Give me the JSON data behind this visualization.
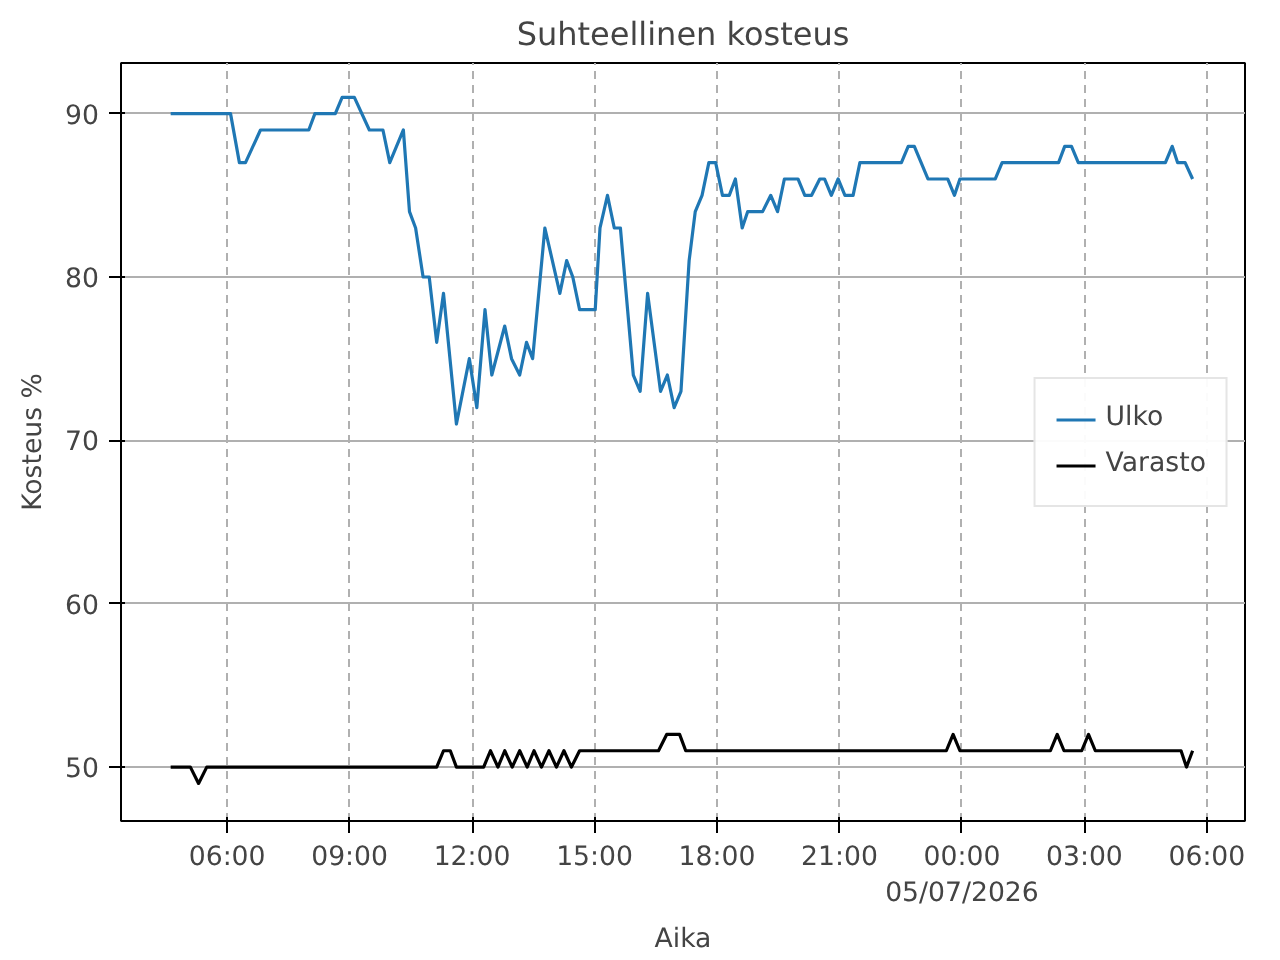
{
  "chart_data": {
    "type": "line",
    "title": "Suhteellinen kosteus",
    "xlabel": "Aika",
    "ylabel": "Kosteus %",
    "xlim": [
      "2026-07-04T03:24",
      "2026-07-05T06:56"
    ],
    "ylim": [
      46.7,
      93.1
    ],
    "xticks": [
      {
        "value": "2026-07-04T06:00",
        "label": "06:00"
      },
      {
        "value": "2026-07-04T09:00",
        "label": "09:00"
      },
      {
        "value": "2026-07-04T12:00",
        "label": "12:00"
      },
      {
        "value": "2026-07-04T15:00",
        "label": "15:00"
      },
      {
        "value": "2026-07-04T18:00",
        "label": "18:00"
      },
      {
        "value": "2026-07-04T21:00",
        "label": "21:00"
      },
      {
        "value": "2026-07-05T00:00",
        "label": "00:00\n05/07/2026"
      },
      {
        "value": "2026-07-05T03:00",
        "label": "03:00"
      },
      {
        "value": "2026-07-05T06:00",
        "label": "06:00"
      }
    ],
    "yticks": [
      50,
      60,
      70,
      80,
      90
    ],
    "grid": true,
    "legend": "right",
    "line_style": "solid",
    "series": [
      {
        "name": "Ulko",
        "color": "#1f77b4",
        "x": [
          "2026-07-04T04:37",
          "2026-07-04T06:05",
          "2026-07-04T06:18",
          "2026-07-04T06:27",
          "2026-07-04T06:49",
          "2026-07-04T08:00",
          "2026-07-04T08:09",
          "2026-07-04T08:39",
          "2026-07-04T08:49",
          "2026-07-04T09:07",
          "2026-07-04T09:29",
          "2026-07-04T09:49",
          "2026-07-04T09:59",
          "2026-07-04T10:19",
          "2026-07-04T10:28",
          "2026-07-04T10:37",
          "2026-07-04T10:48",
          "2026-07-04T10:57",
          "2026-07-04T11:08",
          "2026-07-04T11:18",
          "2026-07-04T11:37",
          "2026-07-04T11:56",
          "2026-07-04T12:07",
          "2026-07-04T12:19",
          "2026-07-04T12:29",
          "2026-07-04T12:48",
          "2026-07-04T12:58",
          "2026-07-04T13:10",
          "2026-07-04T13:20",
          "2026-07-04T13:29",
          "2026-07-04T13:47",
          "2026-07-04T14:09",
          "2026-07-04T14:19",
          "2026-07-04T14:28",
          "2026-07-04T14:38",
          "2026-07-04T15:01",
          "2026-07-04T15:08",
          "2026-07-04T15:19",
          "2026-07-04T15:29",
          "2026-07-04T15:38",
          "2026-07-04T15:57",
          "2026-07-04T16:07",
          "2026-07-04T16:18",
          "2026-07-04T16:37",
          "2026-07-04T16:47",
          "2026-07-04T16:57",
          "2026-07-04T17:07",
          "2026-07-04T17:19",
          "2026-07-04T17:28",
          "2026-07-04T17:38",
          "2026-07-04T17:48",
          "2026-07-04T17:58",
          "2026-07-04T18:08",
          "2026-07-04T18:18",
          "2026-07-04T18:27",
          "2026-07-04T18:37",
          "2026-07-04T18:45",
          "2026-07-04T19:07",
          "2026-07-04T19:19",
          "2026-07-04T19:29",
          "2026-07-04T19:39",
          "2026-07-04T19:59",
          "2026-07-04T20:09",
          "2026-07-04T20:19",
          "2026-07-04T20:31",
          "2026-07-04T20:38",
          "2026-07-04T20:48",
          "2026-07-04T20:58",
          "2026-07-04T21:08",
          "2026-07-04T21:20",
          "2026-07-04T21:30",
          "2026-07-04T22:31",
          "2026-07-04T22:41",
          "2026-07-04T22:50",
          "2026-07-04T23:10",
          "2026-07-04T23:39",
          "2026-07-04T23:49",
          "2026-07-04T23:57",
          "2026-07-05T00:49",
          "2026-07-05T00:59",
          "2026-07-05T02:22",
          "2026-07-05T02:31",
          "2026-07-05T02:41",
          "2026-07-05T02:51",
          "2026-07-05T04:59",
          "2026-07-05T05:09",
          "2026-07-05T05:17",
          "2026-07-05T05:28",
          "2026-07-05T05:39"
        ],
        "values": [
          90,
          90,
          87,
          87,
          89,
          89,
          90,
          90,
          91,
          91,
          89,
          89,
          87,
          89,
          84,
          83,
          80,
          80,
          76,
          79,
          71,
          75,
          72,
          78,
          74,
          77,
          75,
          74,
          76,
          75,
          83,
          79,
          81,
          80,
          78,
          78,
          83,
          85,
          83,
          83,
          74,
          73,
          79,
          73,
          74,
          72,
          73,
          81,
          84,
          85,
          87,
          87,
          85,
          85,
          86,
          83,
          84,
          84,
          85,
          84,
          86,
          86,
          85,
          85,
          86,
          86,
          85,
          86,
          85,
          85,
          87,
          87,
          88,
          88,
          86,
          86,
          85,
          86,
          86,
          87,
          87,
          88,
          88,
          87,
          87,
          88,
          87,
          87,
          86
        ]
      },
      {
        "name": "Varasto",
        "color": "#000000",
        "x": [
          "2026-07-04T04:37",
          "2026-07-04T05:06",
          "2026-07-04T05:18",
          "2026-07-04T05:30",
          "2026-07-04T11:08",
          "2026-07-04T11:18",
          "2026-07-04T11:28",
          "2026-07-04T11:37",
          "2026-07-04T12:17",
          "2026-07-04T12:27",
          "2026-07-04T12:38",
          "2026-07-04T12:48",
          "2026-07-04T12:59",
          "2026-07-04T13:10",
          "2026-07-04T13:21",
          "2026-07-04T13:31",
          "2026-07-04T13:42",
          "2026-07-04T13:53",
          "2026-07-04T14:04",
          "2026-07-04T14:15",
          "2026-07-04T14:26",
          "2026-07-04T14:38",
          "2026-07-04T16:34",
          "2026-07-04T16:46",
          "2026-07-04T17:05",
          "2026-07-04T17:14",
          "2026-07-04T23:37",
          "2026-07-04T23:47",
          "2026-07-04T23:57",
          "2026-07-05T02:10",
          "2026-07-05T02:20",
          "2026-07-05T02:30",
          "2026-07-05T02:56",
          "2026-07-05T03:06",
          "2026-07-05T03:16",
          "2026-07-05T05:22",
          "2026-07-05T05:30",
          "2026-07-05T05:39"
        ],
        "values": [
          50,
          50,
          49,
          50,
          50,
          51,
          51,
          50,
          50,
          51,
          50,
          51,
          50,
          51,
          50,
          51,
          50,
          51,
          50,
          51,
          50,
          51,
          51,
          52,
          52,
          51,
          51,
          52,
          51,
          51,
          52,
          51,
          51,
          52,
          51,
          51,
          50,
          51
        ]
      }
    ]
  }
}
